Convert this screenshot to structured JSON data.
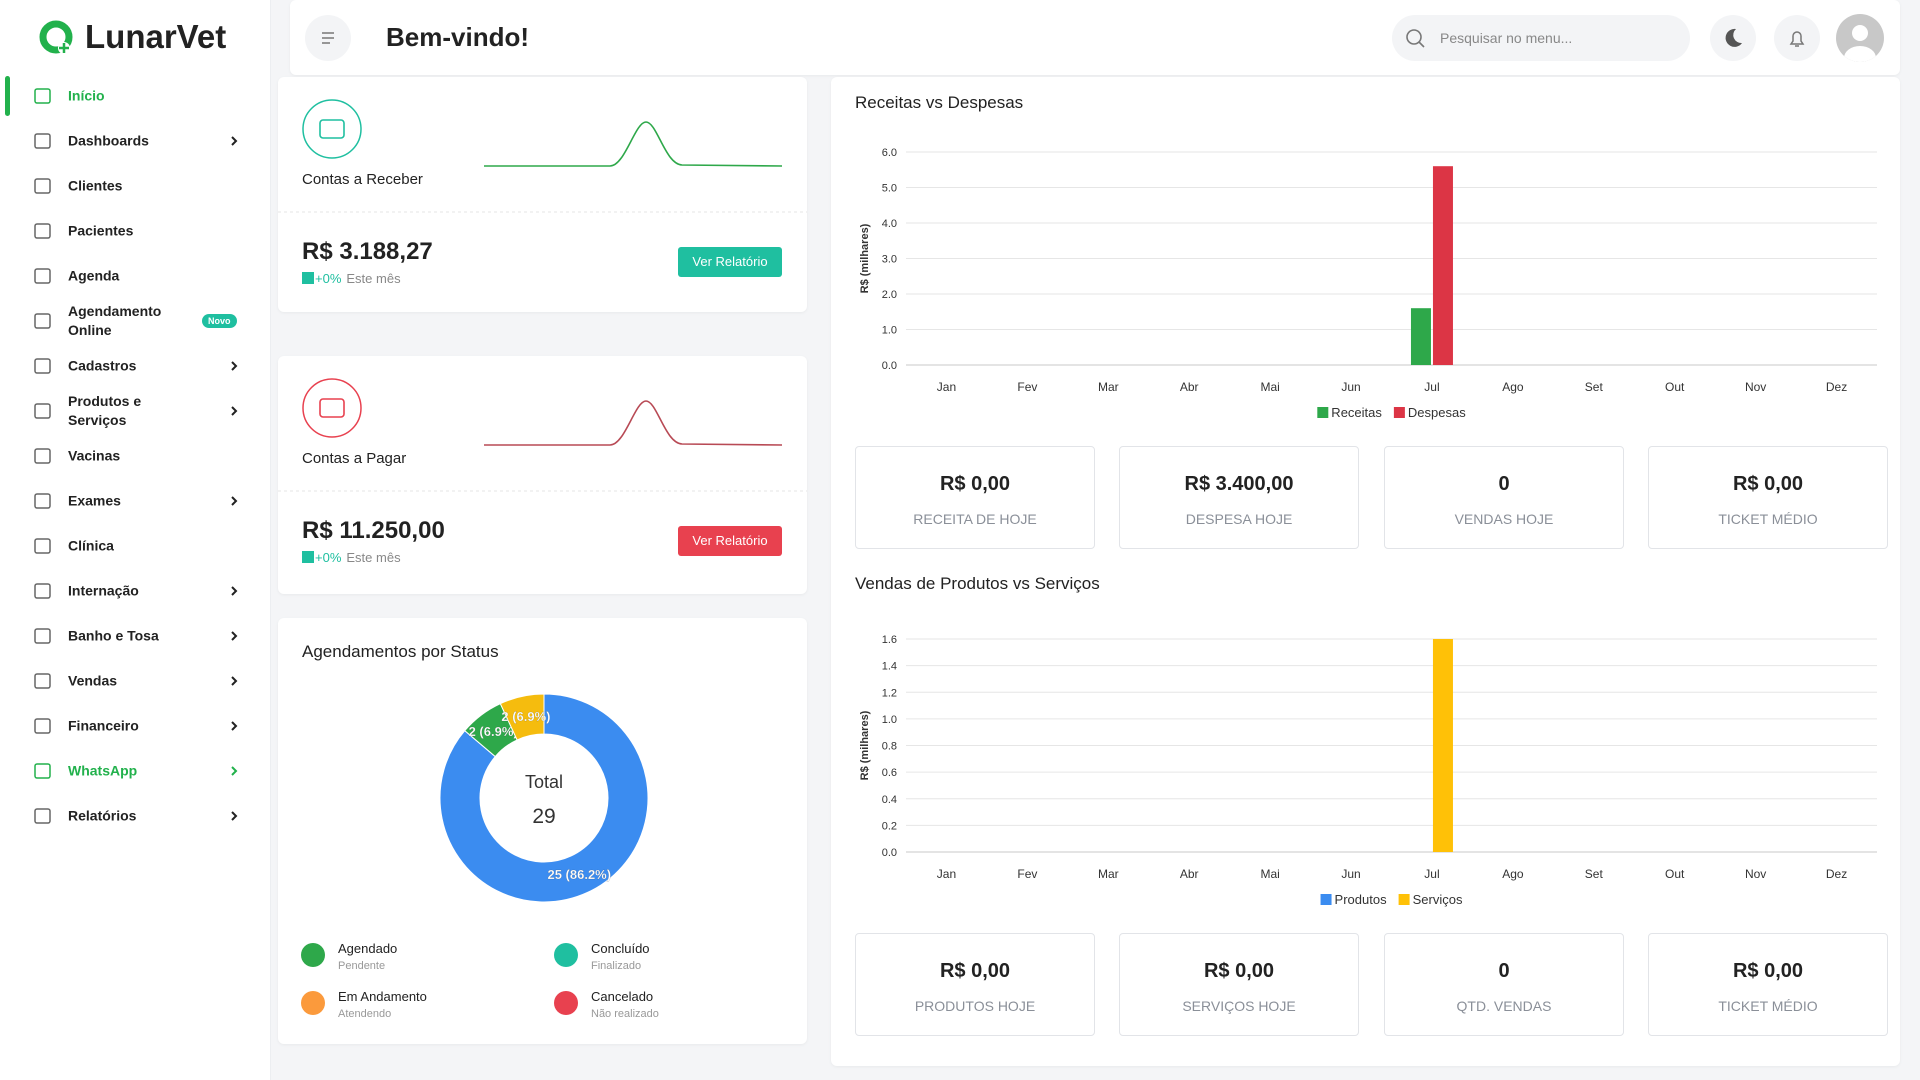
{
  "sidebar": {
    "brand": "LunarVet",
    "active_color": "#22b14c",
    "menu": [
      {
        "label": "Início",
        "active": true
      },
      {
        "label": "Dashboards",
        "arrow": true
      },
      {
        "label": "Clientes"
      },
      {
        "label": "Pacientes"
      },
      {
        "label": "Agenda"
      },
      {
        "label": "Agendamento Online",
        "badge": "Novo"
      },
      {
        "label": "Cadastros",
        "arrow": true
      },
      {
        "label": "Produtos e Serviços",
        "arrow": true
      },
      {
        "label": "Vacinas"
      },
      {
        "label": "Exames",
        "arrow": true
      },
      {
        "label": "Clínica"
      },
      {
        "label": "Internação",
        "arrow": true
      },
      {
        "label": "Banho e Tosa",
        "arrow": true
      },
      {
        "label": "Vendas",
        "arrow": true
      },
      {
        "label": "Financeiro",
        "arrow": true
      },
      {
        "label": "WhatsApp",
        "arrow": true,
        "color": "#22b14c"
      },
      {
        "label": "Relatórios",
        "arrow": true
      }
    ]
  },
  "header": {
    "title": "Bem-vindo!",
    "search_placeholder": "Pesquisar no menu..."
  },
  "accounts": [
    {
      "title": "Contas a Receber",
      "amount": "R$ 3.188,27",
      "change": "+0%",
      "period": "Este mês",
      "button": "Ver Relatório",
      "color": "#1fbfa0"
    },
    {
      "title": "Contas a Pagar",
      "amount": "R$ 11.250,00",
      "change": "+0%",
      "period": "Este mês",
      "button": "Ver Relatório",
      "color": "#e8414f"
    }
  ],
  "chart_data": [
    {
      "type": "pie",
      "title": "Agendamentos por Status",
      "center_label": "Total",
      "center_value": 29,
      "values": [
        25,
        2,
        2
      ],
      "value_labels": [
        "25 (86.2%)",
        "2 (6.9%)",
        "2 (6.9%)"
      ],
      "colors": [
        "#3b8cf0",
        "#2ea84a",
        "#f5bc0e"
      ],
      "legend": [
        {
          "name": "Agendado",
          "sub": "Pendente",
          "color": "#2ea84a"
        },
        {
          "name": "Concluído",
          "sub": "Finalizado",
          "color": "#1fbfa0"
        },
        {
          "name": "Em Andamento",
          "sub": "Atendendo",
          "color": "#fb9a3c"
        },
        {
          "name": "Cancelado",
          "sub": "Não realizado",
          "color": "#e8414f"
        }
      ]
    },
    {
      "type": "bar",
      "title": "Receitas vs Despesas",
      "y_label": "R$ (milhares)",
      "categories": [
        "Jan",
        "Fev",
        "Mar",
        "Abr",
        "Mai",
        "Jun",
        "Jul",
        "Ago",
        "Set",
        "Out",
        "Nov",
        "Dez"
      ],
      "series": [
        {
          "name": "Receitas",
          "color": "#2ea84a",
          "values": [
            0,
            0,
            0,
            0,
            0,
            0,
            1.6,
            0,
            0,
            0,
            0,
            0
          ]
        },
        {
          "name": "Despesas",
          "color": "#dc3545",
          "values": [
            0,
            0,
            0,
            0,
            0,
            0,
            5.6,
            0,
            0,
            0,
            0,
            0
          ]
        }
      ],
      "ylim": [
        0,
        6
      ],
      "yticks": [
        {
          "value": 0,
          "label": "0.0"
        },
        {
          "value": 1,
          "label": "1.0"
        },
        {
          "value": 2,
          "label": "2.0"
        },
        {
          "value": 3,
          "label": "3.0"
        },
        {
          "value": 4,
          "label": "4.0"
        },
        {
          "value": 5,
          "label": "5.0"
        },
        {
          "value": 6,
          "label": "6.0"
        }
      ],
      "grid": true
    },
    {
      "type": "bar",
      "title": "Vendas de Produtos vs Serviços",
      "y_label": "R$ (milhares)",
      "categories": [
        "Jan",
        "Fev",
        "Mar",
        "Abr",
        "Mai",
        "Jun",
        "Jul",
        "Ago",
        "Set",
        "Out",
        "Nov",
        "Dez"
      ],
      "series": [
        {
          "name": "Produtos",
          "color": "#3b8cf0",
          "values": [
            0,
            0,
            0,
            0,
            0,
            0,
            0,
            0,
            0,
            0,
            0,
            0
          ]
        },
        {
          "name": "Serviços",
          "color": "#ffc107",
          "values": [
            0,
            0,
            0,
            0,
            0,
            0,
            1.6,
            0,
            0,
            0,
            0,
            0
          ]
        }
      ],
      "ylim": [
        0,
        1.6
      ],
      "yticks": [
        {
          "value": 0,
          "label": "0.0"
        },
        {
          "value": 0.2,
          "label": "0.2"
        },
        {
          "value": 0.4,
          "label": "0.4"
        },
        {
          "value": 0.6,
          "label": "0.6"
        },
        {
          "value": 0.8,
          "label": "0.8"
        },
        {
          "value": 1,
          "label": "1.0"
        },
        {
          "value": 1.2,
          "label": "1.2"
        },
        {
          "value": 1.4,
          "label": "1.4"
        },
        {
          "value": 1.6,
          "label": "1.6"
        }
      ],
      "grid": true
    }
  ],
  "stats": [
    [
      {
        "value": "R$ 0,00",
        "label": "RECEITA DE HOJE"
      },
      {
        "value": "R$ 3.400,00",
        "label": "DESPESA HOJE"
      },
      {
        "value": "0",
        "label": "VENDAS HOJE"
      },
      {
        "value": "R$ 0,00",
        "label": "TICKET MÉDIO"
      }
    ],
    [
      {
        "value": "R$ 0,00",
        "label": "PRODUTOS HOJE"
      },
      {
        "value": "R$ 0,00",
        "label": "SERVIÇOS HOJE"
      },
      {
        "value": "0",
        "label": "QTD. VENDAS"
      },
      {
        "value": "R$ 0,00",
        "label": "TICKET MÉDIO"
      }
    ]
  ]
}
